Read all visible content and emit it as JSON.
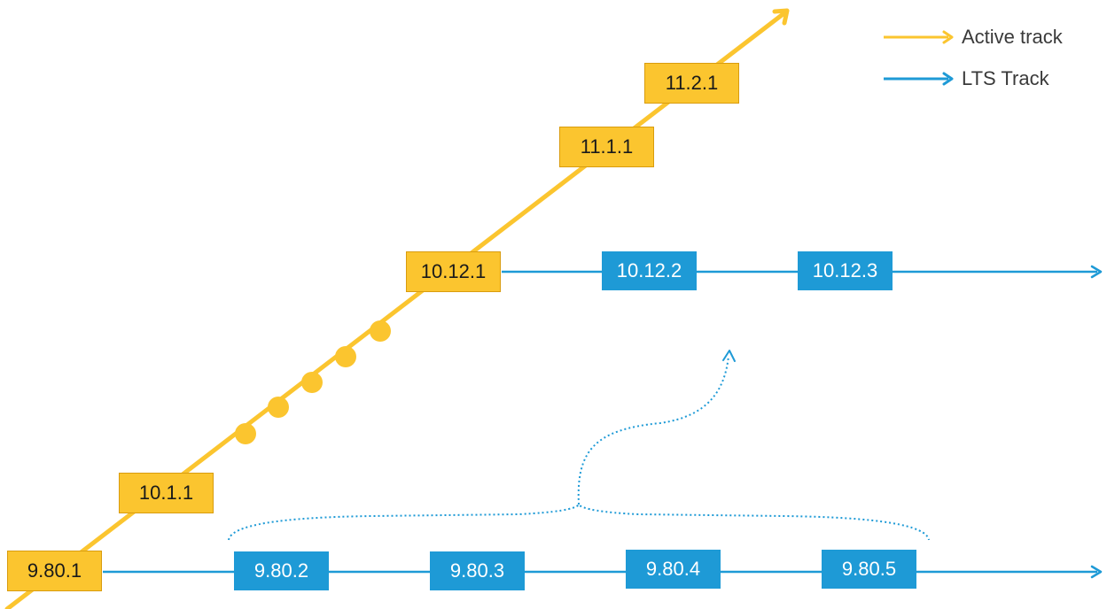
{
  "colors": {
    "active": "#fbc52f",
    "lts": "#1e9ad6"
  },
  "legend": {
    "active_label": "Active track",
    "lts_label": "LTS Track"
  },
  "active_track": {
    "versions": [
      "9.80.1",
      "10.1.1",
      "10.12.1",
      "11.1.1",
      "11.2.1"
    ]
  },
  "lts_track_1": {
    "versions": [
      "9.80.2",
      "9.80.3",
      "9.80.4",
      "9.80.5"
    ]
  },
  "lts_track_2": {
    "versions": [
      "10.12.2",
      "10.12.3"
    ]
  }
}
